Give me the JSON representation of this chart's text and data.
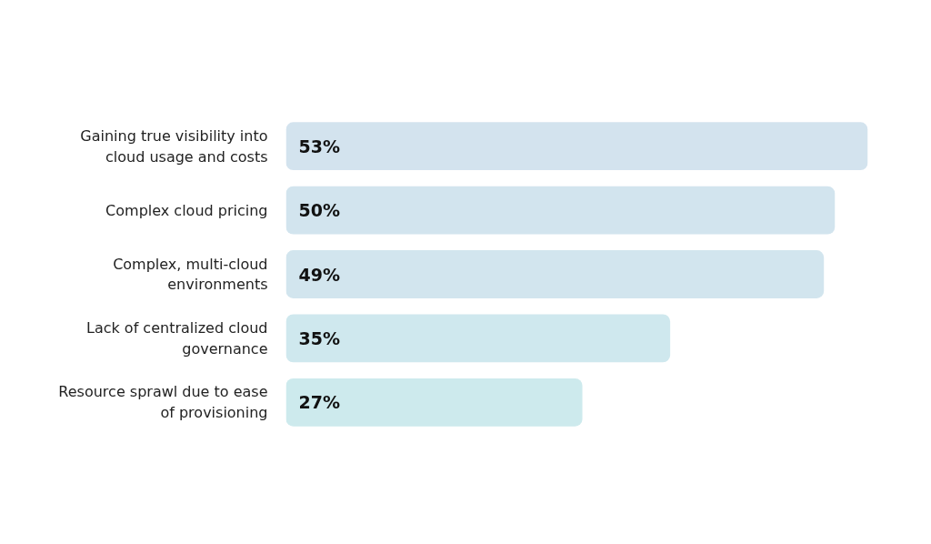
{
  "chart_data": {
    "type": "bar",
    "orientation": "horizontal",
    "categories": [
      "Gaining true visibility into cloud usage and costs",
      "Complex cloud pricing",
      "Complex, multi-cloud environments",
      "Lack of centralized cloud governance",
      "Resource sprawl due to ease of provisioning"
    ],
    "values": [
      53,
      50,
      49,
      35,
      27
    ],
    "value_labels": [
      "53%",
      "50%",
      "49%",
      "35%",
      "27%"
    ],
    "colors": [
      "#d3e3ee",
      "#d2e4ee",
      "#d2e5ee",
      "#cfe8ee",
      "#cdeaed"
    ],
    "grid": false
  }
}
